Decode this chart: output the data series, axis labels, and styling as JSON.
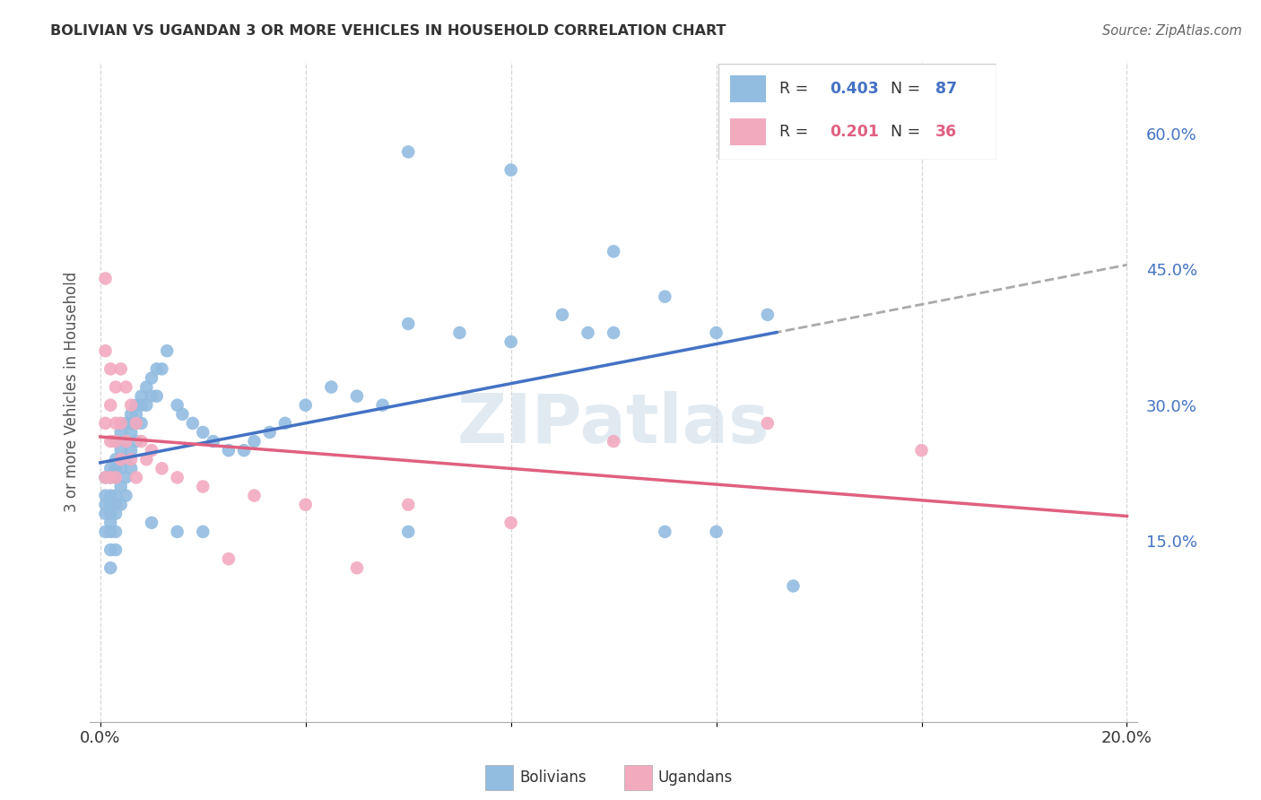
{
  "title": "BOLIVIAN VS UGANDAN 3 OR MORE VEHICLES IN HOUSEHOLD CORRELATION CHART",
  "source": "Source: ZipAtlas.com",
  "ylabel": "3 or more Vehicles in Household",
  "xlim": [
    -0.002,
    0.202
  ],
  "ylim": [
    -0.05,
    0.68
  ],
  "xtick_positions": [
    0.0,
    0.04,
    0.08,
    0.12,
    0.16,
    0.2
  ],
  "xtick_labels": [
    "0.0%",
    "",
    "",
    "",
    "",
    "20.0%"
  ],
  "ytick_positions": [
    0.0,
    0.15,
    0.3,
    0.45,
    0.6
  ],
  "ytick_labels": [
    "",
    "15.0%",
    "30.0%",
    "45.0%",
    "60.0%"
  ],
  "bolivian_R": 0.403,
  "bolivian_N": 87,
  "ugandan_R": 0.201,
  "ugandan_N": 36,
  "blue_color": "#92bce0",
  "pink_color": "#f2aabf",
  "blue_line_color": "#4472c4",
  "pink_line_color": "#e06080",
  "dashed_line_color": "#aaaaaa",
  "watermark": "ZIPatlas",
  "bx": [
    0.001,
    0.001,
    0.001,
    0.001,
    0.001,
    0.002,
    0.002,
    0.002,
    0.002,
    0.002,
    0.002,
    0.002,
    0.002,
    0.002,
    0.003,
    0.003,
    0.003,
    0.003,
    0.003,
    0.003,
    0.003,
    0.003,
    0.003,
    0.004,
    0.004,
    0.004,
    0.004,
    0.004,
    0.004,
    0.005,
    0.005,
    0.005,
    0.005,
    0.005,
    0.006,
    0.006,
    0.006,
    0.006,
    0.006,
    0.007,
    0.007,
    0.007,
    0.007,
    0.008,
    0.008,
    0.008,
    0.009,
    0.009,
    0.01,
    0.01,
    0.011,
    0.011,
    0.012,
    0.013,
    0.015,
    0.016,
    0.018,
    0.02,
    0.022,
    0.025,
    0.028,
    0.03,
    0.033,
    0.036,
    0.04,
    0.045,
    0.05,
    0.055,
    0.06,
    0.07,
    0.08,
    0.09,
    0.095,
    0.1,
    0.11,
    0.12,
    0.13,
    0.135,
    0.06,
    0.08,
    0.1,
    0.11,
    0.12,
    0.06,
    0.01,
    0.015,
    0.02
  ],
  "by": [
    0.22,
    0.2,
    0.19,
    0.18,
    0.16,
    0.23,
    0.22,
    0.2,
    0.19,
    0.18,
    0.17,
    0.16,
    0.14,
    0.12,
    0.26,
    0.24,
    0.23,
    0.22,
    0.2,
    0.19,
    0.18,
    0.16,
    0.14,
    0.27,
    0.25,
    0.24,
    0.23,
    0.21,
    0.19,
    0.28,
    0.26,
    0.24,
    0.22,
    0.2,
    0.29,
    0.28,
    0.27,
    0.25,
    0.23,
    0.3,
    0.29,
    0.28,
    0.26,
    0.31,
    0.3,
    0.28,
    0.32,
    0.3,
    0.33,
    0.31,
    0.34,
    0.31,
    0.34,
    0.36,
    0.3,
    0.29,
    0.28,
    0.27,
    0.26,
    0.25,
    0.25,
    0.26,
    0.27,
    0.28,
    0.3,
    0.32,
    0.31,
    0.3,
    0.39,
    0.38,
    0.37,
    0.4,
    0.38,
    0.38,
    0.42,
    0.38,
    0.4,
    0.1,
    0.58,
    0.56,
    0.47,
    0.16,
    0.16,
    0.16,
    0.17,
    0.16,
    0.16
  ],
  "ux": [
    0.001,
    0.001,
    0.001,
    0.001,
    0.002,
    0.002,
    0.002,
    0.002,
    0.003,
    0.003,
    0.003,
    0.003,
    0.004,
    0.004,
    0.004,
    0.005,
    0.005,
    0.006,
    0.006,
    0.007,
    0.007,
    0.008,
    0.009,
    0.01,
    0.012,
    0.015,
    0.02,
    0.03,
    0.04,
    0.06,
    0.08,
    0.1,
    0.13,
    0.16,
    0.025,
    0.05
  ],
  "uy": [
    0.44,
    0.36,
    0.28,
    0.22,
    0.34,
    0.3,
    0.26,
    0.22,
    0.32,
    0.28,
    0.26,
    0.22,
    0.34,
    0.28,
    0.24,
    0.32,
    0.26,
    0.3,
    0.24,
    0.28,
    0.22,
    0.26,
    0.24,
    0.25,
    0.23,
    0.22,
    0.21,
    0.2,
    0.19,
    0.19,
    0.17,
    0.26,
    0.28,
    0.25,
    0.13,
    0.12
  ]
}
